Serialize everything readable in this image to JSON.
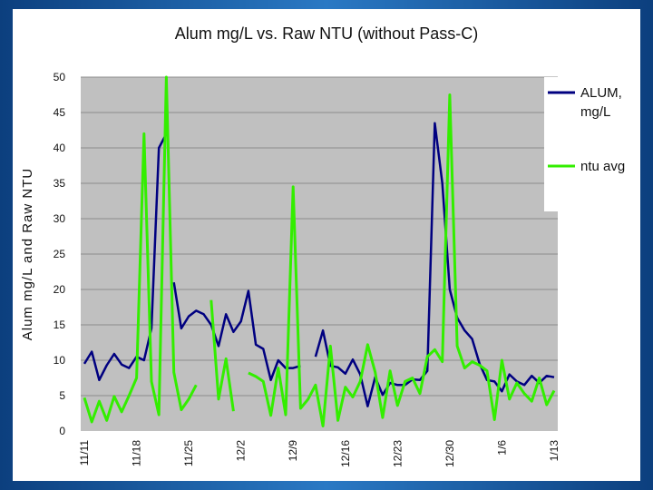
{
  "colors": {
    "background": "#1f5fa6",
    "plot_area": "#c0c0c0",
    "alum_series": "#000080",
    "ntu_series": "#33ee00"
  },
  "chart_data": {
    "type": "line",
    "title": "Alum mg/L vs. Raw NTU (without Pass-C)",
    "xlabel": "",
    "ylabel": "Alum mg/L and Raw NTU",
    "ylim": [
      0,
      50
    ],
    "y_ticks": [
      0,
      5,
      10,
      15,
      20,
      25,
      30,
      35,
      40,
      45,
      50
    ],
    "x_tick_labels": [
      "11/11",
      "11/18",
      "11/25",
      "12/2",
      "12/9",
      "12/16",
      "12/23",
      "12/30",
      "1/6",
      "1/13"
    ],
    "x_tick_days": [
      0,
      7,
      14,
      21,
      28,
      35,
      42,
      49,
      56,
      63
    ],
    "grid": "horizontal",
    "legend_position": "right",
    "series": [
      {
        "name": "ALUM,\nmg/L",
        "color": "#000080",
        "points": [
          [
            0,
            9.5
          ],
          [
            1,
            11.2
          ],
          [
            2,
            7.2
          ],
          [
            3,
            9.3
          ],
          [
            4,
            10.9
          ],
          [
            5,
            9.4
          ],
          [
            6,
            8.9
          ],
          [
            7,
            10.5
          ],
          [
            8,
            10.0
          ],
          [
            9,
            14.5
          ],
          [
            10,
            40.0
          ],
          [
            11,
            42.0
          ],
          null,
          [
            12,
            21.0
          ],
          [
            13,
            14.5
          ],
          [
            14,
            16.2
          ],
          [
            15,
            17.0
          ],
          [
            16,
            16.5
          ],
          [
            17,
            15.0
          ],
          [
            18,
            12.0
          ],
          [
            19,
            16.5
          ],
          [
            20,
            14.0
          ],
          [
            21,
            15.5
          ],
          [
            22,
            19.8
          ],
          [
            23,
            12.2
          ],
          [
            24,
            11.6
          ],
          [
            25,
            7.2
          ],
          [
            26,
            10.0
          ],
          [
            27,
            8.9
          ],
          [
            28,
            8.9
          ],
          [
            29,
            9.2
          ],
          null,
          [
            31,
            10.5
          ],
          [
            32,
            14.2
          ],
          [
            33,
            9.2
          ],
          [
            34,
            9.0
          ],
          [
            35,
            8.1
          ],
          [
            36,
            10.1
          ],
          [
            37,
            8.0
          ],
          [
            38,
            3.5
          ],
          [
            39,
            7.6
          ],
          [
            40,
            5.1
          ],
          [
            41,
            6.8
          ],
          [
            42,
            6.5
          ],
          [
            43,
            6.5
          ],
          [
            44,
            7.3
          ],
          [
            45,
            7.2
          ],
          [
            46,
            8.5
          ],
          [
            47,
            43.5
          ],
          [
            48,
            35.0
          ],
          [
            49,
            20.0
          ],
          [
            50,
            16.0
          ],
          [
            51,
            14.2
          ],
          [
            52,
            13.0
          ],
          [
            53,
            9.5
          ],
          [
            54,
            7.2
          ],
          [
            55,
            7.0
          ],
          [
            56,
            5.6
          ],
          [
            57,
            8.0
          ],
          [
            58,
            7.0
          ],
          [
            59,
            6.5
          ],
          [
            60,
            7.8
          ],
          [
            61,
            6.8
          ],
          [
            62,
            7.8
          ],
          [
            63,
            7.6
          ]
        ]
      },
      {
        "name": "ntu avg",
        "color": "#33ee00",
        "points": [
          [
            0,
            4.7
          ],
          [
            1,
            1.3
          ],
          [
            2,
            4.2
          ],
          [
            3,
            1.5
          ],
          [
            4,
            4.9
          ],
          [
            5,
            2.7
          ],
          [
            6,
            5.0
          ],
          [
            7,
            7.5
          ],
          [
            8,
            42.0
          ],
          [
            9,
            7.0
          ],
          [
            10,
            2.3
          ],
          [
            11,
            50.0
          ],
          [
            12,
            8.3
          ],
          [
            13,
            3.0
          ],
          [
            14,
            4.5
          ],
          [
            15,
            6.5
          ],
          null,
          [
            17,
            18.5
          ],
          [
            18,
            4.5
          ],
          [
            19,
            10.2
          ],
          [
            20,
            2.8
          ],
          null,
          [
            22,
            8.2
          ],
          [
            23,
            7.7
          ],
          [
            24,
            7.0
          ],
          [
            25,
            2.2
          ],
          [
            26,
            8.9
          ],
          [
            27,
            2.3
          ],
          [
            28,
            34.5
          ],
          [
            29,
            3.2
          ],
          [
            30,
            4.5
          ],
          [
            31,
            6.5
          ],
          [
            32,
            0.7
          ],
          [
            33,
            12.0
          ],
          [
            34,
            1.5
          ],
          [
            35,
            6.2
          ],
          [
            36,
            4.8
          ],
          [
            37,
            7.0
          ],
          [
            38,
            12.2
          ],
          [
            39,
            8.3
          ],
          [
            40,
            1.9
          ],
          [
            41,
            8.5
          ],
          [
            42,
            3.6
          ],
          [
            43,
            7.0
          ],
          [
            44,
            7.5
          ],
          [
            45,
            5.3
          ],
          [
            46,
            10.5
          ],
          [
            47,
            11.5
          ],
          [
            48,
            9.8
          ],
          [
            49,
            47.5
          ],
          [
            50,
            12.0
          ],
          [
            51,
            8.9
          ],
          [
            52,
            9.8
          ],
          [
            53,
            9.3
          ],
          [
            54,
            8.5
          ],
          [
            55,
            1.6
          ],
          [
            56,
            10.0
          ],
          [
            57,
            4.5
          ],
          [
            58,
            6.8
          ],
          [
            59,
            5.3
          ],
          [
            60,
            4.2
          ],
          [
            61,
            7.5
          ],
          [
            62,
            3.7
          ],
          [
            63,
            5.7
          ]
        ]
      }
    ]
  }
}
